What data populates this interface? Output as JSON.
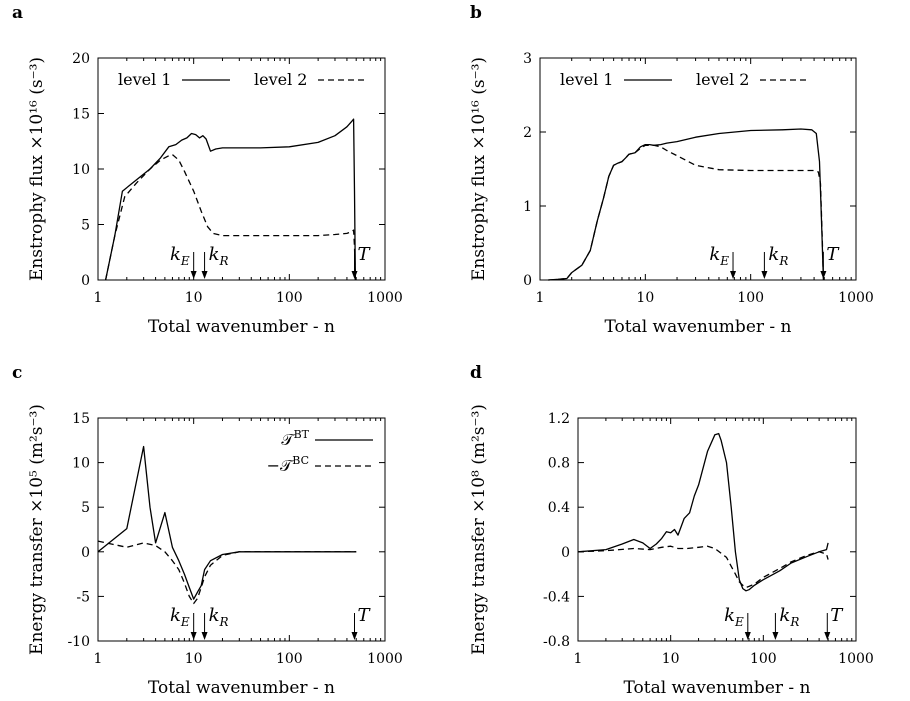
{
  "chart_data": [
    {
      "panel_label": "a",
      "type": "line",
      "xscale": "log",
      "xlim": [
        1,
        1000
      ],
      "ylim": [
        0,
        20
      ],
      "xticks": [
        "1",
        "10",
        "100",
        "1000"
      ],
      "yticks": [
        "0",
        "5",
        "10",
        "15",
        "20"
      ],
      "xlabel": "Total wavenumber - n",
      "ylabel": "Enstrophy flux ×10¹⁶ (s⁻³)",
      "legend": "top",
      "series": [
        {
          "name": "level 1",
          "style": "solid",
          "x": [
            1.2,
            1.5,
            1.8,
            2.5,
            3.5,
            4.5,
            5.5,
            6.5,
            7.5,
            8.5,
            9.5,
            10.5,
            11.5,
            12.5,
            13.5,
            15,
            17,
            20,
            30,
            50,
            100,
            200,
            300,
            400,
            450,
            470,
            480,
            490
          ],
          "y": [
            0,
            4,
            8,
            9,
            10,
            11,
            12,
            12.2,
            12.6,
            12.8,
            13.2,
            13.1,
            12.8,
            13,
            12.7,
            11.6,
            11.8,
            11.9,
            11.9,
            11.9,
            12.0,
            12.4,
            13.0,
            13.8,
            14.3,
            14.5,
            8,
            0
          ]
        },
        {
          "name": "level 2",
          "style": "dashed",
          "x": [
            1.2,
            1.5,
            1.9,
            2.5,
            3.5,
            4.5,
            5.5,
            6,
            7,
            8,
            10,
            12,
            14,
            16,
            20,
            30,
            50,
            100,
            200,
            300,
            400,
            450,
            470,
            480,
            490
          ],
          "y": [
            0,
            4,
            7.5,
            8.7,
            10,
            10.8,
            11.2,
            11.3,
            10.8,
            9.8,
            8,
            6.2,
            4.8,
            4.2,
            4.0,
            4.0,
            4.0,
            4.0,
            4.0,
            4.1,
            4.2,
            4.35,
            4.5,
            3,
            0
          ]
        }
      ],
      "markers": [
        {
          "label": "k",
          "sub": "E",
          "x": 10
        },
        {
          "label": "k",
          "sub": "R",
          "x": 13
        },
        {
          "label": "T",
          "x": 480
        }
      ]
    },
    {
      "panel_label": "b",
      "type": "line",
      "xscale": "log",
      "xlim": [
        1,
        1000
      ],
      "ylim": [
        0,
        3
      ],
      "xticks": [
        "1",
        "10",
        "100",
        "1000"
      ],
      "yticks": [
        "0",
        "1",
        "2",
        "3"
      ],
      "xlabel": "Total wavenumber - n",
      "ylabel": "Enstrophy flux ×10¹⁶ (s⁻³)",
      "legend": "top",
      "series": [
        {
          "name": "level 1",
          "style": "solid",
          "x": [
            1.2,
            1.5,
            1.8,
            2,
            2.5,
            3,
            3.5,
            4,
            4.5,
            5,
            5.5,
            6,
            6.5,
            7,
            8,
            9,
            10,
            11,
            12,
            14,
            16,
            20,
            30,
            50,
            100,
            200,
            300,
            380,
            420,
            450,
            470,
            490
          ],
          "y": [
            0,
            0.01,
            0.02,
            0.1,
            0.2,
            0.4,
            0.8,
            1.1,
            1.4,
            1.55,
            1.58,
            1.6,
            1.65,
            1.7,
            1.72,
            1.8,
            1.83,
            1.83,
            1.82,
            1.83,
            1.85,
            1.87,
            1.93,
            1.98,
            2.02,
            2.03,
            2.04,
            2.03,
            1.98,
            1.6,
            0.8,
            0
          ]
        },
        {
          "name": "level 2",
          "style": "dashed",
          "x": [
            1.2,
            1.5,
            1.8,
            2,
            2.5,
            3,
            3.5,
            4,
            4.5,
            5,
            5.5,
            6,
            6.5,
            7,
            8,
            9,
            10,
            11,
            12,
            14,
            16,
            20,
            30,
            50,
            100,
            200,
            300,
            400,
            440,
            460,
            480,
            490
          ],
          "y": [
            0,
            0.01,
            0.02,
            0.1,
            0.2,
            0.4,
            0.8,
            1.1,
            1.4,
            1.55,
            1.58,
            1.6,
            1.65,
            1.7,
            1.72,
            1.78,
            1.82,
            1.82,
            1.82,
            1.8,
            1.75,
            1.68,
            1.55,
            1.49,
            1.48,
            1.48,
            1.48,
            1.48,
            1.46,
            1.3,
            0.5,
            0
          ]
        }
      ],
      "markers": [
        {
          "label": "k",
          "sub": "E",
          "x": 68
        },
        {
          "label": "k",
          "sub": "R",
          "x": 135
        },
        {
          "label": "T",
          "x": 490
        }
      ]
    },
    {
      "panel_label": "c",
      "type": "line",
      "xscale": "log",
      "xlim": [
        1,
        1000
      ],
      "ylim": [
        -10,
        15
      ],
      "xticks": [
        "1",
        "10",
        "100",
        "1000"
      ],
      "yticks": [
        "-10",
        "-5",
        "0",
        "5",
        "10",
        "15"
      ],
      "xlabel": "Total wavenumber - n",
      "ylabel": "Energy transfer ×10⁵ (m²s⁻³)",
      "legend": "top-right",
      "series": [
        {
          "name": "𝒯^BT",
          "style": "solid",
          "x": [
            1,
            2,
            3,
            3.5,
            4,
            5,
            6,
            7,
            8,
            9,
            10,
            11,
            12,
            13,
            15,
            20,
            30,
            50,
            100,
            200,
            500
          ],
          "y": [
            0,
            2.6,
            11.8,
            5,
            1,
            4.4,
            0.5,
            -1,
            -2.5,
            -4,
            -5.3,
            -4.5,
            -3.8,
            -2,
            -1,
            -0.3,
            0,
            0,
            0,
            0,
            0
          ]
        },
        {
          "name": "−𝒯^BC",
          "style": "dashed",
          "x": [
            1,
            2,
            3,
            4,
            5,
            6,
            7,
            8,
            9,
            10,
            11,
            12,
            13,
            15,
            20,
            30,
            50,
            100,
            200,
            500
          ],
          "y": [
            1.2,
            0.5,
            1.0,
            0.7,
            0.0,
            -1,
            -2,
            -3.5,
            -5,
            -5.8,
            -5.2,
            -4,
            -2.8,
            -1.5,
            -0.4,
            0,
            0,
            0,
            0,
            0
          ]
        }
      ],
      "markers": [
        {
          "label": "k",
          "sub": "E",
          "x": 10
        },
        {
          "label": "k",
          "sub": "R",
          "x": 13
        },
        {
          "label": "T",
          "x": 480
        }
      ]
    },
    {
      "panel_label": "d",
      "type": "line",
      "xscale": "log",
      "xlim": [
        1,
        1000
      ],
      "ylim": [
        -0.8,
        1.2
      ],
      "xticks": [
        "1",
        "10",
        "100",
        "1000"
      ],
      "yticks": [
        "-0.8",
        "-0.4",
        "0",
        "0.4",
        "0.8",
        "1.2"
      ],
      "xlabel": "Total wavenumber - n",
      "ylabel": "Energy transfer ×10⁸ (m²s⁻³)",
      "legend": "none",
      "series": [
        {
          "name": "solid",
          "style": "solid",
          "x": [
            1,
            2,
            3,
            4,
            5,
            6,
            7,
            8,
            9,
            10,
            11,
            12,
            14,
            16,
            18,
            20,
            25,
            30,
            33,
            35,
            40,
            45,
            50,
            55,
            60,
            65,
            70,
            80,
            100,
            150,
            200,
            300,
            400,
            480,
            500
          ],
          "y": [
            0,
            0.02,
            0.07,
            0.11,
            0.08,
            0.03,
            0.07,
            0.12,
            0.18,
            0.17,
            0.2,
            0.15,
            0.3,
            0.35,
            0.5,
            0.6,
            0.9,
            1.05,
            1.06,
            1.0,
            0.8,
            0.4,
            0.0,
            -0.25,
            -0.33,
            -0.35,
            -0.34,
            -0.3,
            -0.25,
            -0.17,
            -0.1,
            -0.04,
            0.0,
            0.02,
            0.08
          ]
        },
        {
          "name": "dashed",
          "style": "dashed",
          "x": [
            1,
            2,
            4,
            6,
            8,
            10,
            12,
            15,
            20,
            25,
            30,
            40,
            50,
            55,
            60,
            65,
            70,
            80,
            100,
            150,
            200,
            300,
            400,
            480,
            500
          ],
          "y": [
            0,
            0.01,
            0.03,
            0.02,
            0.04,
            0.05,
            0.03,
            0.03,
            0.04,
            0.05,
            0.03,
            -0.05,
            -0.2,
            -0.27,
            -0.3,
            -0.32,
            -0.31,
            -0.29,
            -0.23,
            -0.15,
            -0.09,
            -0.03,
            0.0,
            -0.02,
            -0.07
          ]
        }
      ],
      "markers": [
        {
          "label": "k",
          "sub": "E",
          "x": 68
        },
        {
          "label": "k",
          "sub": "R",
          "x": 135
        },
        {
          "label": "T",
          "x": 490
        }
      ]
    }
  ]
}
